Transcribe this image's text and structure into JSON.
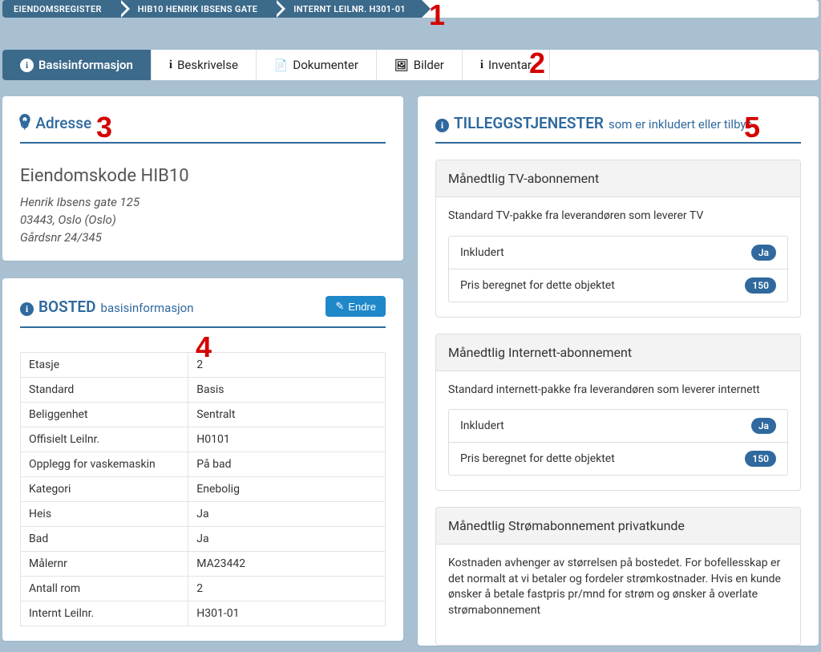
{
  "colors": {
    "accent": "#2f699e",
    "breadcrumb_bg": "#3c6a8b",
    "page_bg": "#a8c0d1",
    "button_bg": "#1f88c9",
    "marker": "#d40000",
    "pill_bg": "#2f699e",
    "border": "#e4e4e4",
    "card_head_bg": "#f3f3f3"
  },
  "breadcrumb": [
    {
      "label": "EIENDOMSREGISTER"
    },
    {
      "label": "HIB10 HENRIK IBSENS GATE"
    },
    {
      "label": "INTERNT LEILNR. H301-01"
    }
  ],
  "tabs": [
    {
      "label": "Basisinformasjon",
      "icon": "info",
      "active": true
    },
    {
      "label": "Beskrivelse",
      "icon": "info"
    },
    {
      "label": "Dokumenter",
      "icon": "doc"
    },
    {
      "label": "Bilder",
      "icon": "img"
    },
    {
      "label": "Inventar",
      "icon": "info"
    }
  ],
  "address_panel": {
    "title": "Adresse",
    "code_label": "Eiendomskode HIB10",
    "lines": [
      "Henrik Ibsens gate 125",
      "03443, Oslo (Oslo)",
      "Gårdsnr 24/345"
    ]
  },
  "bosted_panel": {
    "title_strong": "BOSTED",
    "title_sub": "basisinformasjon",
    "edit_label": "Endre",
    "rows": [
      {
        "k": "Etasje",
        "v": "2"
      },
      {
        "k": "Standard",
        "v": "Basis"
      },
      {
        "k": "Beliggenhet",
        "v": "Sentralt"
      },
      {
        "k": "Offisielt Leilnr.",
        "v": "H0101"
      },
      {
        "k": "Opplegg for vaskemaskin",
        "v": "På bad"
      },
      {
        "k": "Kategori",
        "v": "Enebolig"
      },
      {
        "k": "Heis",
        "v": "Ja"
      },
      {
        "k": "Bad",
        "v": "Ja"
      },
      {
        "k": "Målernr",
        "v": "MA23442"
      },
      {
        "k": "Antall rom",
        "v": "2"
      },
      {
        "k": "Internt Leilnr.",
        "v": "H301-01"
      }
    ]
  },
  "services_panel": {
    "title_strong": "TILLEGGSTJENESTER",
    "title_sub": "som er inkludert eller tilbys",
    "row_labels": {
      "included": "Inkludert",
      "price": "Pris beregnet for dette objektet"
    },
    "services": [
      {
        "title": "Månedtlig TV-abonnement",
        "desc": "Standard TV-pakke fra leverandøren som leverer TV",
        "included": "Ja",
        "price": "150"
      },
      {
        "title": "Månedtlig Internett-abonnement",
        "desc": "Standard internett-pakke fra leverandøren som leverer internett",
        "included": "Ja",
        "price": "150"
      },
      {
        "title": "Månedtlig Strømabonnement privatkunde",
        "desc": "Kostnaden avhenger av størrelsen på bostedet. For bofellesskap er det normalt at vi betaler og fordeler strømkostnader. Hvis en kunde ønsker å betale fastpris pr/mnd for strøm og ønsker å overlate strømabonnement"
      }
    ]
  },
  "markers": {
    "1": "1",
    "2": "2",
    "3": "3",
    "4": "4",
    "5": "5"
  }
}
